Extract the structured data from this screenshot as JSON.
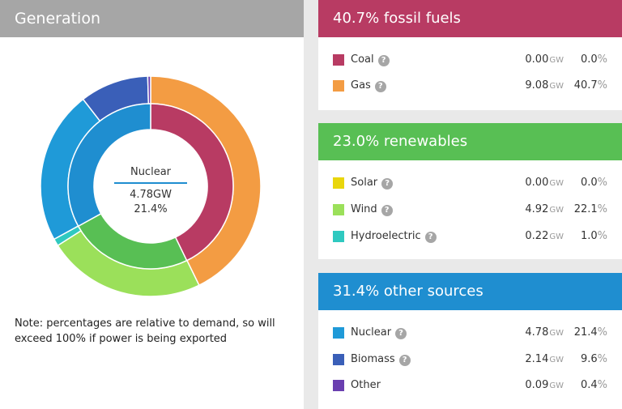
{
  "generation": {
    "title": "Generation",
    "center": {
      "name": "Nuclear",
      "value": "4.78GW",
      "percent": "21.4%"
    },
    "note": "Note: percentages are relative to demand, so will exceed 100% if power is being exported"
  },
  "groups": [
    {
      "title": "40.7% fossil fuels",
      "color": "#b83b63",
      "rows": [
        {
          "label": "Coal",
          "help": "?",
          "gw": "0.00",
          "gw_unit": "GW",
          "pct": "0.0",
          "pct_unit": "%",
          "color": "#b83b63"
        },
        {
          "label": "Gas",
          "help": "?",
          "gw": "9.08",
          "gw_unit": "GW",
          "pct": "40.7",
          "pct_unit": "%",
          "color": "#f39c43"
        }
      ]
    },
    {
      "title": "23.0% renewables",
      "color": "#58bf54",
      "rows": [
        {
          "label": "Solar",
          "help": "?",
          "gw": "0.00",
          "gw_unit": "GW",
          "pct": "0.0",
          "pct_unit": "%",
          "color": "#e9d60c"
        },
        {
          "label": "Wind",
          "help": "?",
          "gw": "4.92",
          "gw_unit": "GW",
          "pct": "22.1",
          "pct_unit": "%",
          "color": "#9be05a"
        },
        {
          "label": "Hydroelectric",
          "help": "?",
          "gw": "0.22",
          "gw_unit": "GW",
          "pct": "1.0",
          "pct_unit": "%",
          "color": "#2fc9c0"
        }
      ]
    },
    {
      "title": "31.4% other sources",
      "color": "#1f8ed0",
      "rows": [
        {
          "label": "Nuclear",
          "help": "?",
          "gw": "4.78",
          "gw_unit": "GW",
          "pct": "21.4",
          "pct_unit": "%",
          "color": "#1f9ad8"
        },
        {
          "label": "Biomass",
          "help": "?",
          "gw": "2.14",
          "gw_unit": "GW",
          "pct": "9.6",
          "pct_unit": "%",
          "color": "#3a5fb8"
        },
        {
          "label": "Other",
          "help": "?",
          "gw": "0.09",
          "gw_unit": "GW",
          "pct": "0.4",
          "pct_unit": "%",
          "color": "#6a3fb0"
        }
      ]
    }
  ],
  "chart_data": {
    "type": "pie",
    "title": "Generation",
    "outer_ring": {
      "name": "sources",
      "categories": [
        "Coal",
        "Gas",
        "Solar",
        "Wind",
        "Hydroelectric",
        "Nuclear",
        "Biomass",
        "Other"
      ],
      "values": [
        0.0,
        40.7,
        0.0,
        22.1,
        1.0,
        21.4,
        9.6,
        0.4
      ],
      "colors": [
        "#b83b63",
        "#f39c43",
        "#e9d60c",
        "#9be05a",
        "#2fc9c0",
        "#1f9ad8",
        "#3a5fb8",
        "#6a3fb0"
      ]
    },
    "inner_ring": {
      "name": "groups",
      "categories": [
        "fossil fuels",
        "renewables",
        "other sources"
      ],
      "values": [
        40.7,
        23.0,
        31.4
      ],
      "colors": [
        "#b83b63",
        "#58bf54",
        "#1f8ed0"
      ]
    }
  }
}
